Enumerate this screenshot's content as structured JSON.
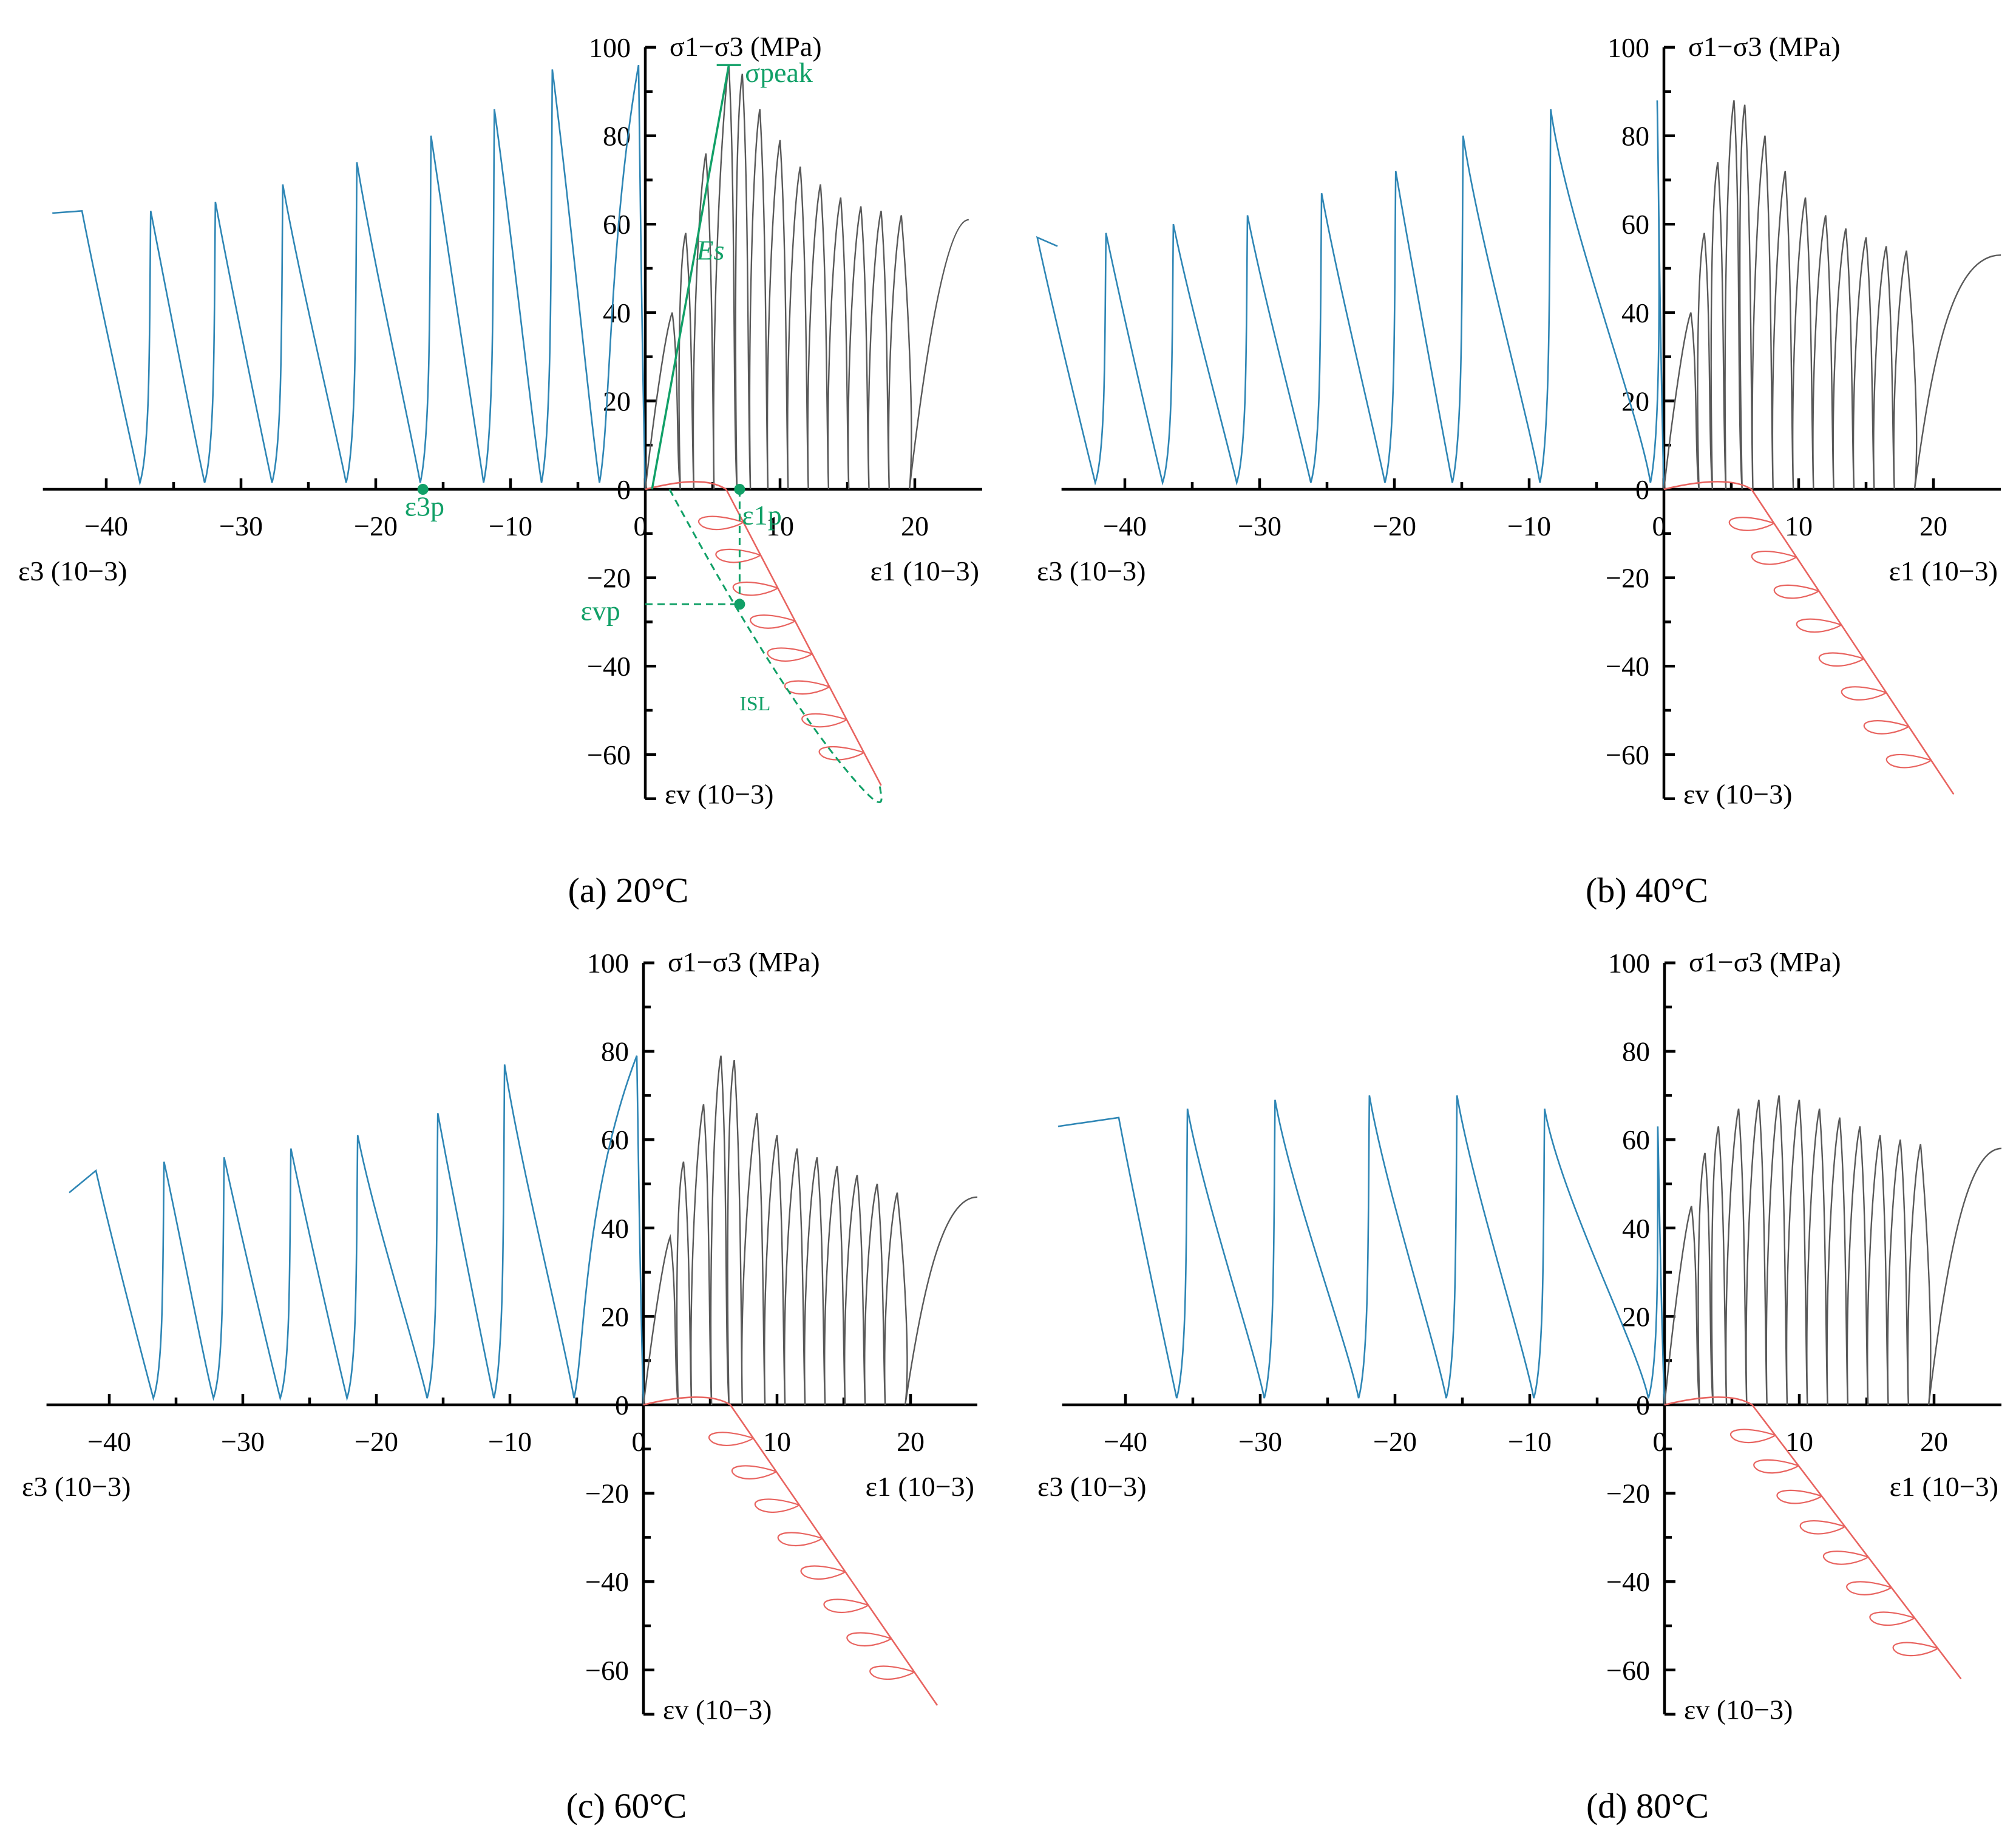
{
  "colors": {
    "axis": "#000000",
    "eps3_curve": "#2e86b5",
    "eps1_curve": "#595959",
    "epsv_curve": "#e8635f",
    "annotation": "#11a067"
  },
  "axis_text": {
    "y_label": "σ1−σ3 (MPa)",
    "x_left_label": "ε3 (10−3)",
    "x_right_label": "ε1 (10−3)",
    "y_down_label": "εv (10−3)",
    "y_ticks_up": [
      "100",
      "80",
      "60",
      "40",
      "20",
      "0"
    ],
    "y_ticks_down": [
      "−20",
      "−40",
      "−60"
    ],
    "x_ticks": [
      "−40",
      "−30",
      "−20",
      "−10",
      "0",
      "10",
      "20"
    ]
  },
  "annotations": {
    "sigma_peak": "σpeak",
    "Es": "Es",
    "eps3p": "ε3p",
    "eps1p": "ε1p",
    "epsvp": "εvp",
    "isl": "ISL"
  },
  "chart_data": [
    {
      "type": "line",
      "title": "(a) 20°C",
      "xlabel_left": "ε3 (10−3)",
      "xlabel_right": "ε1 (10−3)",
      "ylabel": "σ1−σ3 (MPa)",
      "ylabel_down": "εv (10−3)",
      "xlim": [
        -45,
        25
      ],
      "ylim": [
        -70,
        100
      ],
      "eps3_unload_strains": [
        -3.2,
        -7.5,
        -11.8,
        -16.5,
        -22.0,
        -27.5,
        -32.5,
        -37.3
      ],
      "eps3_stress_levels": [
        96,
        95,
        86,
        80,
        74,
        69,
        65,
        63,
        63
      ],
      "eps3_residual": 62.5,
      "eps3_end": -44,
      "eps1_peaks": [
        40,
        58,
        76,
        96,
        94,
        86,
        79,
        73,
        69,
        66,
        64,
        63,
        62
      ],
      "eps1_peak_strains": [
        2.0,
        3.0,
        4.5,
        6.2,
        7.2,
        8.5,
        10.0,
        11.5,
        13.0,
        14.5,
        16.0,
        17.5,
        19.0
      ],
      "eps1_residual": 61,
      "eps1_end": 24,
      "epsv_end": [
        17.5,
        -67
      ],
      "epsv_turn": 4.5,
      "annotations": {
        "sigma_peak": 96,
        "eps1p": 7,
        "eps3p": -16.5,
        "epsvp": -26,
        "Es_secant_to": [
          6.2,
          96
        ]
      }
    },
    {
      "type": "line",
      "title": "(b) 40°C",
      "xlabel_left": "ε3 (10−3)",
      "xlabel_right": "ε1 (10−3)",
      "ylabel": "σ1−σ3 (MPa)",
      "ylabel_down": "εv (10−3)",
      "xlim": [
        -45,
        25
      ],
      "ylim": [
        -70,
        100
      ],
      "eps3_unload_strains": [
        -0.8,
        -9.0,
        -15.5,
        -20.5,
        -26.0,
        -31.5,
        -37.0,
        -42.0
      ],
      "eps3_stress_levels": [
        88,
        86,
        80,
        72,
        67,
        62,
        60,
        58,
        57
      ],
      "eps3_residual": 55,
      "eps3_end": -45,
      "eps1_peaks": [
        40,
        58,
        74,
        88,
        87,
        80,
        72,
        66,
        62,
        59,
        57,
        55,
        54
      ],
      "eps1_peak_strains": [
        2.0,
        3.0,
        4.0,
        5.2,
        6.0,
        7.5,
        9.0,
        10.5,
        12.0,
        13.5,
        15.0,
        16.5,
        18.0
      ],
      "eps1_residual": 53,
      "eps1_end": 25,
      "epsv_end": [
        21.5,
        -69
      ],
      "epsv_turn": 5.0
    },
    {
      "type": "line",
      "title": "(c) 60°C",
      "xlabel_left": "ε3 (10−3)",
      "xlabel_right": "ε1 (10−3)",
      "ylabel": "σ1−σ3 (MPa)",
      "ylabel_down": "εv (10−3)",
      "xlim": [
        -45,
        25
      ],
      "ylim": [
        -70,
        100
      ],
      "eps3_unload_strains": [
        -5.0,
        -11.0,
        -16.0,
        -22.0,
        -27.0,
        -32.0,
        -36.5
      ],
      "eps3_stress_levels": [
        79,
        77,
        66,
        61,
        58,
        56,
        55,
        53,
        51
      ],
      "eps3_residual": 48,
      "eps3_end": -43,
      "eps1_peaks": [
        38,
        55,
        68,
        79,
        78,
        66,
        61,
        58,
        56,
        54,
        52,
        50,
        48
      ],
      "eps1_peak_strains": [
        2.0,
        3.0,
        4.5,
        5.8,
        6.8,
        8.5,
        10.0,
        11.5,
        13.0,
        14.5,
        16.0,
        17.5,
        19.0
      ],
      "eps1_residual": 47,
      "eps1_end": 25,
      "epsv_end": [
        22,
        -68
      ],
      "epsv_turn": 5.0
    },
    {
      "type": "line",
      "title": "(d) 80°C",
      "xlabel_left": "ε3 (10−3)",
      "xlabel_right": "ε1 (10−3)",
      "ylabel": "σ1−σ3 (MPa)",
      "ylabel_down": "εv (10−3)",
      "xlim": [
        -45,
        25
      ],
      "ylim": [
        -70,
        100
      ],
      "eps3_unload_strains": [
        -1.0,
        -9.5,
        -16.0,
        -22.5,
        -29.5,
        -36.0
      ],
      "eps3_stress_levels": [
        63,
        67,
        70,
        70,
        69,
        67,
        65
      ],
      "eps3_residual": 63,
      "eps3_end": -45,
      "eps1_peaks": [
        45,
        57,
        63,
        67,
        69,
        70,
        69,
        67,
        65,
        63,
        61,
        60,
        59
      ],
      "eps1_peak_strains": [
        2.0,
        3.0,
        4.0,
        5.5,
        7.0,
        8.5,
        10.0,
        11.5,
        13.0,
        14.5,
        16.0,
        17.5,
        19.0
      ],
      "eps1_residual": 58,
      "eps1_end": 25,
      "epsv_end": [
        22,
        -62
      ],
      "epsv_turn": 5.0
    }
  ]
}
